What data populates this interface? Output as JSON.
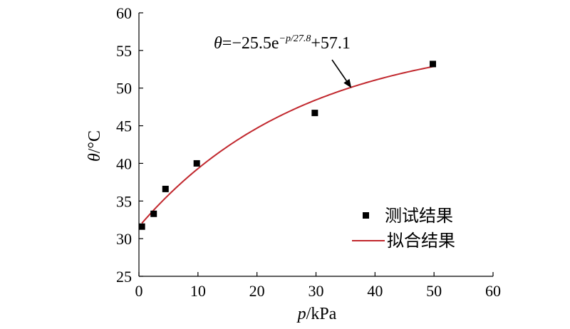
{
  "chart_data": {
    "type": "scatter",
    "xlabel_var": "p",
    "xlabel_unit": "/kPa",
    "ylabel_var": "θ",
    "ylabel_unit": "/°C",
    "xlim": [
      0,
      60
    ],
    "ylim": [
      25,
      60
    ],
    "xticks": [
      0,
      10,
      20,
      30,
      40,
      50,
      60
    ],
    "yticks": [
      25,
      30,
      35,
      40,
      45,
      50,
      55,
      60
    ],
    "grid": false,
    "legend_position": "bottom-right",
    "series": [
      {
        "name": "测试结果",
        "kind": "points",
        "color": "#000000",
        "x": [
          0.5,
          2.5,
          4.5,
          9.8,
          29.8,
          49.8
        ],
        "y": [
          31.6,
          33.3,
          36.6,
          40.0,
          46.7,
          53.2
        ]
      },
      {
        "name": "拟合结果",
        "kind": "line",
        "color": "#c1272d",
        "function": "θ = -25.5·exp(-p/27.8) + 57.1",
        "x_range": [
          0.5,
          50
        ]
      }
    ],
    "annotation": {
      "theta": "θ",
      "equals": "=−25.5e",
      "exponent": "−p/27.8",
      "tail": "+57.1",
      "arrow_to_x": 36
    }
  }
}
